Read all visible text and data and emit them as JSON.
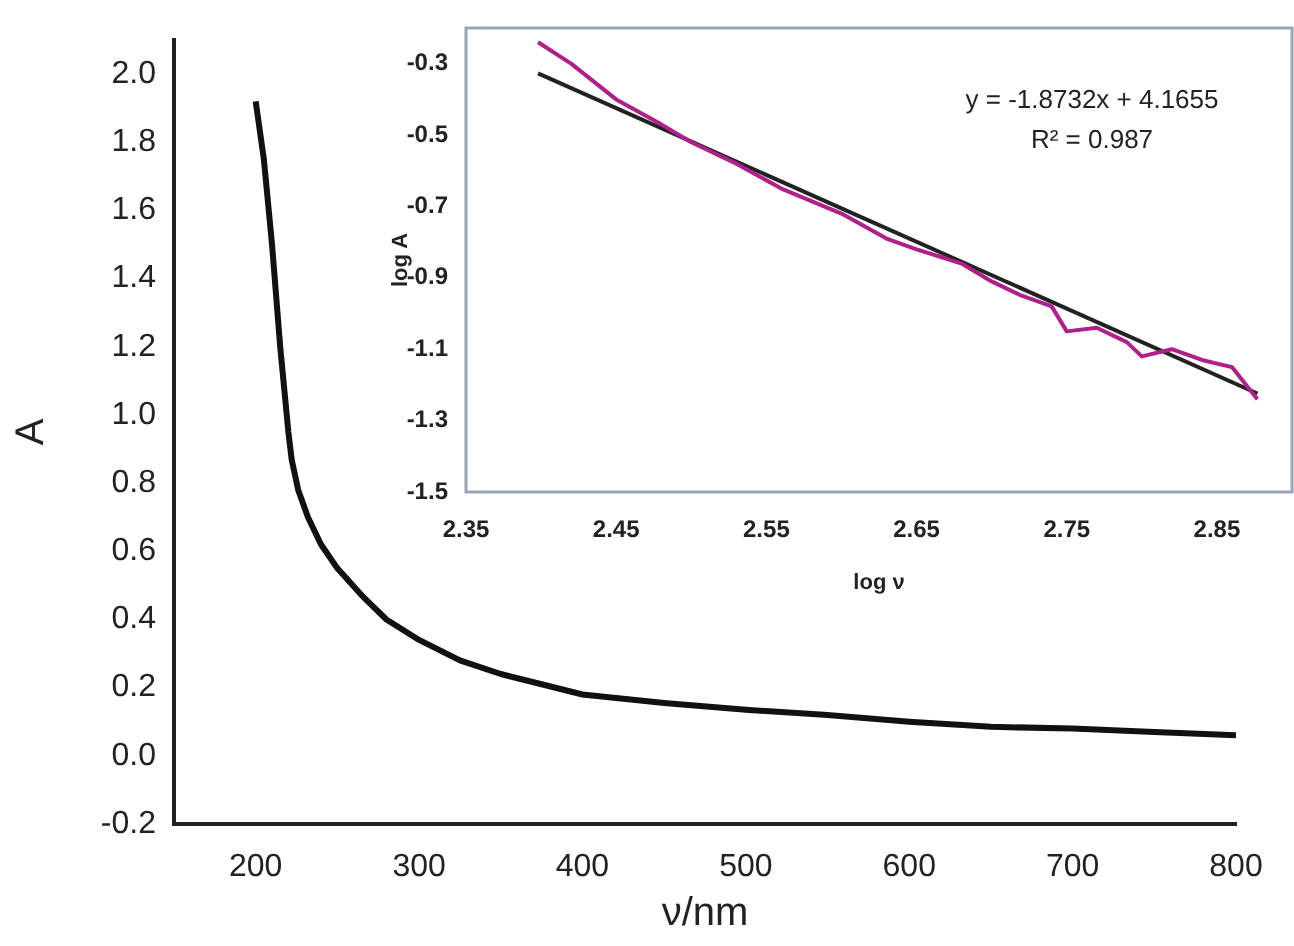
{
  "chart_data": [
    {
      "type": "line",
      "xlabel": "ν/nm",
      "ylabel": "A",
      "xlim": [
        150,
        800
      ],
      "xticks": [
        200,
        300,
        400,
        500,
        600,
        700,
        800
      ],
      "ylim": [
        -0.2,
        2.1
      ],
      "yticks": [
        -0.2,
        {
          "value": 0,
          "label": "0.0"
        },
        0.2,
        0.4,
        0.6,
        0.8,
        {
          "value": 1,
          "label": "1.0"
        },
        1.2,
        1.4,
        1.6,
        1.8,
        {
          "value": 2,
          "label": "2.0"
        }
      ],
      "grid": false,
      "legend": false,
      "marker": "none",
      "x": [
        200,
        205,
        210,
        215,
        220,
        222,
        226,
        232,
        240,
        250,
        265,
        280,
        300,
        325,
        350,
        375,
        400,
        450,
        500,
        550,
        600,
        650,
        700,
        750,
        800
      ],
      "series": [
        {
          "color": "#111111",
          "values": [
            1.92,
            1.75,
            1.5,
            1.2,
            0.95,
            0.87,
            0.78,
            0.7,
            0.62,
            0.55,
            0.47,
            0.4,
            0.34,
            0.28,
            0.24,
            0.21,
            0.18,
            0.155,
            0.135,
            0.12,
            0.1,
            0.085,
            0.08,
            0.07,
            0.06
          ]
        }
      ]
    },
    {
      "type": "line",
      "xlabel": "log ν",
      "ylabel": "log A",
      "xlim": [
        2.35,
        2.9
      ],
      "xticks": [
        2.35,
        2.45,
        2.55,
        2.65,
        2.75,
        2.85
      ],
      "ylim": [
        -1.5,
        -0.2
      ],
      "yticks": [
        -1.5,
        -1.3,
        -1.1,
        -0.9,
        -0.7,
        -0.5,
        -0.3
      ],
      "grid": false,
      "legend": false,
      "marker": "none",
      "annotations": [
        "y = -1.8732x + 4.1655",
        "R² = 0.987"
      ],
      "series": [
        {
          "color": "#b0208a",
          "x": [
            2.398,
            2.42,
            2.45,
            2.48,
            2.5,
            2.53,
            2.56,
            2.6,
            2.63,
            2.65,
            2.68,
            2.7,
            2.72,
            2.74,
            2.75,
            2.77,
            2.79,
            2.8,
            2.82,
            2.84,
            2.86,
            2.877
          ],
          "values": [
            -0.24,
            -0.3,
            -0.4,
            -0.47,
            -0.52,
            -0.58,
            -0.65,
            -0.72,
            -0.79,
            -0.82,
            -0.86,
            -0.91,
            -0.95,
            -0.98,
            -1.05,
            -1.04,
            -1.08,
            -1.12,
            -1.1,
            -1.13,
            -1.15,
            -1.24
          ]
        },
        {
          "type": "line",
          "color": "#222222",
          "x": [
            2.398,
            2.877
          ],
          "values": [
            -0.327,
            -1.224
          ]
        }
      ]
    }
  ]
}
